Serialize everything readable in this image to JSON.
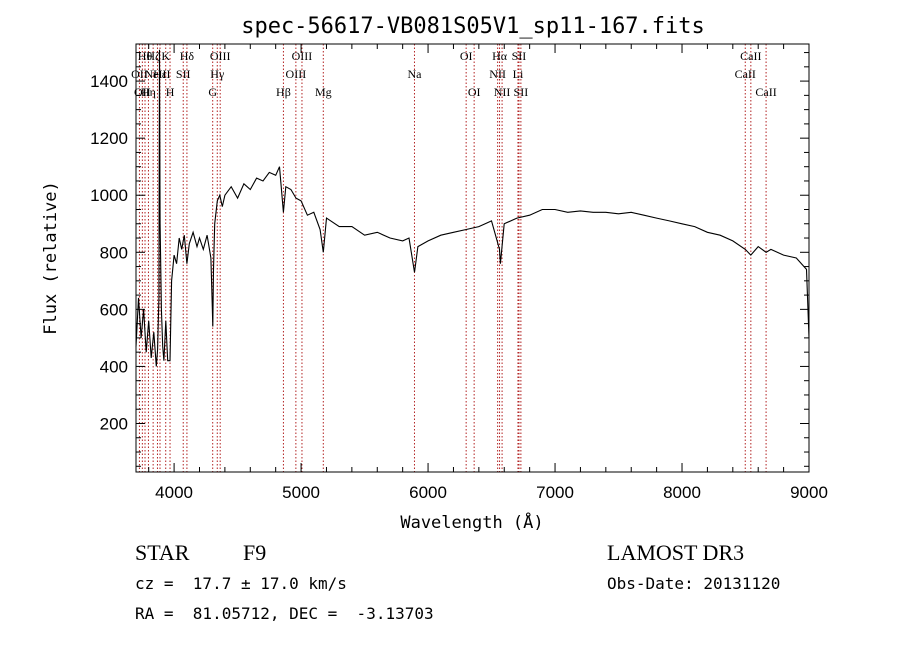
{
  "chart_data": {
    "type": "line",
    "title": "spec-56617-VB081S05V1_sp11-167.fits",
    "xlabel": "Wavelength (Å)",
    "ylabel": "Flux (relative)",
    "xlim": [
      3700,
      9000
    ],
    "ylim": [
      30,
      1530
    ],
    "xticks": [
      4000,
      5000,
      6000,
      7000,
      8000,
      9000
    ],
    "yticks": [
      200,
      400,
      600,
      800,
      1000,
      1200,
      1400
    ],
    "line_color": "#000000",
    "marker_color": "#b22222",
    "spectrum_points": [
      [
        3700,
        470
      ],
      [
        3720,
        640
      ],
      [
        3740,
        500
      ],
      [
        3760,
        600
      ],
      [
        3780,
        450
      ],
      [
        3800,
        560
      ],
      [
        3820,
        430
      ],
      [
        3840,
        520
      ],
      [
        3860,
        400
      ],
      [
        3870,
        460
      ],
      [
        3880,
        640
      ],
      [
        3885,
        1510
      ],
      [
        3890,
        900
      ],
      [
        3900,
        600
      ],
      [
        3910,
        470
      ],
      [
        3920,
        420
      ],
      [
        3935,
        560
      ],
      [
        3950,
        420
      ],
      [
        3968,
        420
      ],
      [
        3980,
        700
      ],
      [
        4000,
        790
      ],
      [
        4020,
        760
      ],
      [
        4040,
        850
      ],
      [
        4060,
        810
      ],
      [
        4080,
        860
      ],
      [
        4101,
        760
      ],
      [
        4120,
        830
      ],
      [
        4150,
        870
      ],
      [
        4180,
        820
      ],
      [
        4200,
        850
      ],
      [
        4230,
        810
      ],
      [
        4260,
        860
      ],
      [
        4290,
        780
      ],
      [
        4300,
        620
      ],
      [
        4305,
        540
      ],
      [
        4310,
        740
      ],
      [
        4320,
        900
      ],
      [
        4340,
        980
      ],
      [
        4360,
        1000
      ],
      [
        4380,
        960
      ],
      [
        4400,
        1000
      ],
      [
        4450,
        1030
      ],
      [
        4500,
        990
      ],
      [
        4550,
        1040
      ],
      [
        4600,
        1020
      ],
      [
        4650,
        1060
      ],
      [
        4700,
        1050
      ],
      [
        4750,
        1080
      ],
      [
        4800,
        1070
      ],
      [
        4830,
        1100
      ],
      [
        4861,
        940
      ],
      [
        4880,
        1030
      ],
      [
        4920,
        1020
      ],
      [
        4960,
        990
      ],
      [
        5000,
        980
      ],
      [
        5050,
        930
      ],
      [
        5100,
        940
      ],
      [
        5150,
        880
      ],
      [
        5175,
        800
      ],
      [
        5200,
        920
      ],
      [
        5300,
        890
      ],
      [
        5400,
        890
      ],
      [
        5500,
        860
      ],
      [
        5600,
        870
      ],
      [
        5700,
        850
      ],
      [
        5800,
        840
      ],
      [
        5850,
        850
      ],
      [
        5893,
        730
      ],
      [
        5920,
        820
      ],
      [
        6000,
        840
      ],
      [
        6100,
        860
      ],
      [
        6200,
        870
      ],
      [
        6300,
        880
      ],
      [
        6400,
        890
      ],
      [
        6450,
        900
      ],
      [
        6500,
        910
      ],
      [
        6563,
        810
      ],
      [
        6570,
        760
      ],
      [
        6600,
        900
      ],
      [
        6700,
        920
      ],
      [
        6800,
        930
      ],
      [
        6900,
        950
      ],
      [
        7000,
        950
      ],
      [
        7100,
        940
      ],
      [
        7200,
        945
      ],
      [
        7300,
        940
      ],
      [
        7400,
        940
      ],
      [
        7500,
        935
      ],
      [
        7600,
        940
      ],
      [
        7700,
        930
      ],
      [
        7800,
        920
      ],
      [
        7900,
        910
      ],
      [
        8000,
        900
      ],
      [
        8100,
        890
      ],
      [
        8200,
        870
      ],
      [
        8300,
        860
      ],
      [
        8400,
        840
      ],
      [
        8498,
        810
      ],
      [
        8542,
        790
      ],
      [
        8600,
        820
      ],
      [
        8662,
        800
      ],
      [
        8700,
        810
      ],
      [
        8800,
        790
      ],
      [
        8900,
        780
      ],
      [
        8980,
        740
      ],
      [
        9000,
        500
      ]
    ],
    "lines": [
      {
        "wave": 3727,
        "label": "OII",
        "row": 1
      },
      {
        "wave": 3750,
        "label": "OII",
        "row": 2
      },
      {
        "wave": 3771,
        "label": "Hθ",
        "row": 0
      },
      {
        "wave": 3798,
        "label": "Hη",
        "row": 2
      },
      {
        "wave": 3835,
        "label": "Hζ",
        "row": 0
      },
      {
        "wave": 3869,
        "label": "NeIII",
        "row": 1
      },
      {
        "wave": 3889,
        "label": "Hε",
        "row": 1
      },
      {
        "wave": 3934,
        "label": "K",
        "row": 0
      },
      {
        "wave": 3968,
        "label": "H",
        "row": 2
      },
      {
        "wave": 4072,
        "label": "SII",
        "row": 1
      },
      {
        "wave": 4101,
        "label": "Hδ",
        "row": 0
      },
      {
        "wave": 4304,
        "label": "G",
        "row": 2
      },
      {
        "wave": 4340,
        "label": "Hγ",
        "row": 1
      },
      {
        "wave": 4363,
        "label": "OIII",
        "row": 0
      },
      {
        "wave": 4861,
        "label": "Hβ",
        "row": 2
      },
      {
        "wave": 4959,
        "label": "OIII",
        "row": 1
      },
      {
        "wave": 5007,
        "label": "OIII",
        "row": 0
      },
      {
        "wave": 5175,
        "label": "Mg",
        "row": 2
      },
      {
        "wave": 5893,
        "label": "Na",
        "row": 1
      },
      {
        "wave": 6300,
        "label": "OI",
        "row": 0
      },
      {
        "wave": 6363,
        "label": "OI",
        "row": 2
      },
      {
        "wave": 6548,
        "label": "NII",
        "row": 1
      },
      {
        "wave": 6563,
        "label": "Hα",
        "row": 0
      },
      {
        "wave": 6583,
        "label": "NII",
        "row": 2
      },
      {
        "wave": 6708,
        "label": "Li",
        "row": 1
      },
      {
        "wave": 6716,
        "label": "SII",
        "row": 0
      },
      {
        "wave": 6731,
        "label": "SII",
        "row": 2
      },
      {
        "wave": 8498,
        "label": "CaII",
        "row": 1
      },
      {
        "wave": 8542,
        "label": "CaII",
        "row": 0
      },
      {
        "wave": 8662,
        "label": "CaII",
        "row": 2
      }
    ]
  },
  "info": {
    "class": "STAR",
    "subclass": "F9",
    "redshift": "cz =  17.7 ± 17.0 km/s",
    "coords": "RA =  81.05712, DEC =  -3.13703",
    "survey": "LAMOST DR3",
    "obs_date": "Obs-Date: 20131120"
  }
}
